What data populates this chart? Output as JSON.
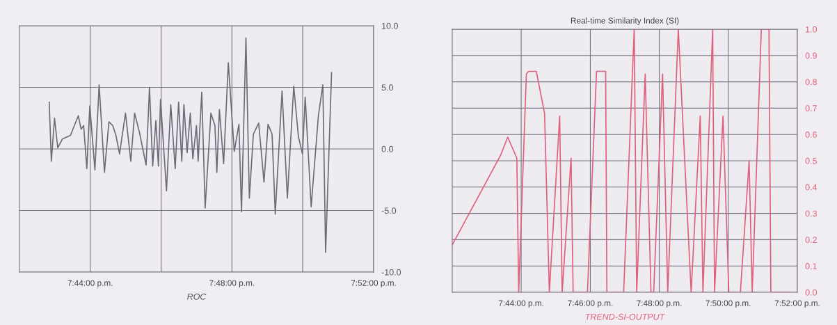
{
  "chart_data": [
    {
      "type": "line",
      "xlabel": "ROC",
      "grid": true,
      "xlim": [
        19.7,
        19.8667
      ],
      "ylim": [
        -10,
        10
      ],
      "xticks": [
        {
          "value": 19.7333,
          "label": "7:44:00 p.m."
        },
        {
          "value": 19.7667,
          "label": null
        },
        {
          "value": 19.8,
          "label": "7:48:00 p.m."
        },
        {
          "value": 19.8333,
          "label": null
        },
        {
          "value": 19.8667,
          "label": "7:52:00 p.m."
        }
      ],
      "yticks": [
        {
          "value": -10,
          "label": "-10.0"
        },
        {
          "value": -5,
          "label": "-5.0"
        },
        {
          "value": 0,
          "label": "0.0"
        },
        {
          "value": 5,
          "label": "5.0"
        },
        {
          "value": 10,
          "label": "10.0"
        }
      ],
      "series": [
        {
          "color": "#6e6a78",
          "x": [
            19.714,
            19.715,
            19.7165,
            19.718,
            19.7202,
            19.724,
            19.7277,
            19.729,
            19.7302,
            19.7317,
            19.7331,
            19.7355,
            19.7375,
            19.74,
            19.7421,
            19.7439,
            19.7454,
            19.7471,
            19.7499,
            19.7524,
            19.7542,
            19.7564,
            19.7596,
            19.7612,
            19.7627,
            19.7642,
            19.7654,
            19.7664,
            19.7692,
            19.7712,
            19.7733,
            19.7749,
            19.7764,
            19.7774,
            19.7789,
            19.7804,
            19.7816,
            19.7833,
            19.7841,
            19.7858,
            19.7874,
            19.7901,
            19.792,
            19.7929,
            19.7941,
            19.7961,
            19.7983,
            19.8011,
            19.8033,
            19.8045,
            19.8066,
            19.8082,
            19.8101,
            19.8126,
            19.8151,
            19.817,
            19.8189,
            19.8204,
            19.8236,
            19.8261,
            19.8291,
            19.8313,
            19.8332,
            19.8345,
            19.8373,
            19.8407,
            19.8428,
            19.8441,
            19.8469
          ],
          "values": [
            3.8,
            -1.0,
            2.5,
            0.1,
            0.8,
            1.1,
            2.7,
            1.6,
            1.9,
            -1.6,
            3.5,
            -1.7,
            5.2,
            -1.9,
            2.2,
            1.9,
            1.1,
            -0.4,
            2.9,
            -1.0,
            2.9,
            1.4,
            -1.3,
            5.0,
            -1.4,
            2.3,
            -1.4,
            4.0,
            -3.4,
            3.6,
            -1.6,
            3.8,
            -1.0,
            3.6,
            -0.3,
            2.9,
            -0.8,
            1.9,
            -1.0,
            4.6,
            -4.8,
            2.9,
            1.9,
            -1.9,
            3.2,
            -1.2,
            7.0,
            -0.2,
            2.0,
            -5.1,
            9.0,
            -4.0,
            1.2,
            2.1,
            -2.7,
            2.0,
            1.2,
            -5.3,
            4.7,
            -4.0,
            5.1,
            1.0,
            -0.4,
            4.2,
            -4.7,
            2.7,
            5.2,
            -8.4,
            6.2
          ]
        }
      ]
    },
    {
      "type": "line",
      "title": "Real-time Similarity Index (SI)",
      "xlabel": "TREND-SI-OUTPUT",
      "grid": true,
      "xlim": [
        19.7,
        19.8667
      ],
      "ylim": [
        0,
        1
      ],
      "xticks": [
        {
          "value": 19.7333,
          "label": "7:44:00 p.m."
        },
        {
          "value": 19.7667,
          "label": "7:46:00 p.m."
        },
        {
          "value": 19.8,
          "label": "7:48:00 p.m."
        },
        {
          "value": 19.8333,
          "label": "7:50:00 p.m."
        },
        {
          "value": 19.8667,
          "label": "7:52:00 p.m."
        }
      ],
      "yticks": [
        {
          "value": 0,
          "label": "0.0"
        },
        0.1,
        0.2,
        0.3,
        0.4,
        0.5,
        0.6,
        0.7,
        0.8,
        0.9,
        {
          "value": 1,
          "label": "1.0"
        }
      ],
      "series": [
        {
          "color": "#e0607c",
          "x": [
            19.7,
            19.7233,
            19.7268,
            19.7312,
            19.7321,
            19.7358,
            19.7369,
            19.7406,
            19.7446,
            19.7469,
            19.7519,
            19.7531,
            19.7574,
            19.7584,
            19.7653,
            19.7697,
            19.7741,
            19.7747,
            19.7828,
            19.7879,
            19.7891,
            19.7932,
            19.796,
            19.7973,
            19.8016,
            19.8041,
            19.8092,
            19.8154,
            19.8198,
            19.8211,
            19.8258,
            19.8267,
            19.8308,
            19.8336,
            19.8392,
            19.8434,
            19.8449,
            19.8493,
            19.853,
            19.8539,
            19.8637
          ],
          "values": [
            0.18,
            0.52,
            0.59,
            0.51,
            0.0,
            0.83,
            0.84,
            0.84,
            0.68,
            0.0,
            0.67,
            0.0,
            0.51,
            0.0,
            0.0,
            0.84,
            0.84,
            0.0,
            0.0,
            1.0,
            0.0,
            0.83,
            0.0,
            0.0,
            0.83,
            0.0,
            1.0,
            0.0,
            0.67,
            0.0,
            1.0,
            0.0,
            0.67,
            0.0,
            0.0,
            0.5,
            0.0,
            1.0,
            1.0,
            0.0,
            0.0
          ]
        }
      ]
    }
  ]
}
